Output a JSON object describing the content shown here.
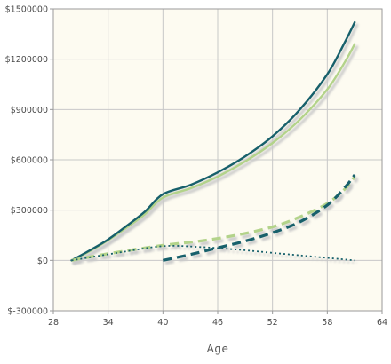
{
  "chart_data": {
    "type": "line",
    "title": "",
    "xlabel": "Age",
    "ylabel": "",
    "xlim": [
      28,
      64
    ],
    "ylim": [
      -300000,
      1500000
    ],
    "x_ticks": [
      28,
      34,
      40,
      46,
      52,
      58,
      64
    ],
    "y_ticks": [
      -300000,
      0,
      300000,
      600000,
      900000,
      1200000,
      1500000
    ],
    "x_tick_labels": [
      "28",
      "34",
      "40",
      "46",
      "52",
      "58",
      "64"
    ],
    "y_tick_labels": [
      "$-300000",
      "$0",
      "$300000",
      "$600000",
      "$900000",
      "$1200000",
      "$1500000"
    ],
    "grid": true,
    "colors": {
      "plot_background": "#fdfbf1",
      "grid": "#c8c8c8",
      "dark_teal": "#17606b",
      "light_green": "#b3d38a",
      "shadow": "#c9c9c9"
    },
    "series": [
      {
        "color": "#b3d38a",
        "style": "solid",
        "points": [
          [
            30,
            0
          ],
          [
            32,
            55000
          ],
          [
            34,
            120000
          ],
          [
            36,
            195000
          ],
          [
            38,
            275000
          ],
          [
            40,
            375000
          ],
          [
            43,
            430000
          ],
          [
            46,
            500000
          ],
          [
            49,
            590000
          ],
          [
            52,
            700000
          ],
          [
            55,
            840000
          ],
          [
            58,
            1020000
          ],
          [
            60,
            1190000
          ],
          [
            61,
            1290000
          ]
        ]
      },
      {
        "color": "#17606b",
        "style": "solid",
        "points": [
          [
            30,
            0
          ],
          [
            32,
            60000
          ],
          [
            34,
            125000
          ],
          [
            36,
            205000
          ],
          [
            38,
            290000
          ],
          [
            40,
            395000
          ],
          [
            43,
            450000
          ],
          [
            46,
            525000
          ],
          [
            49,
            620000
          ],
          [
            52,
            740000
          ],
          [
            55,
            900000
          ],
          [
            58,
            1110000
          ],
          [
            60,
            1310000
          ],
          [
            61,
            1420000
          ]
        ]
      },
      {
        "color": "#b3d38a",
        "style": "dashed",
        "points": [
          [
            30,
            0
          ],
          [
            34,
            40000
          ],
          [
            40,
            90000
          ],
          [
            44,
            115000
          ],
          [
            48,
            150000
          ],
          [
            52,
            200000
          ],
          [
            55,
            260000
          ],
          [
            58,
            340000
          ],
          [
            60,
            430000
          ],
          [
            61,
            500000
          ]
        ]
      },
      {
        "color": "#17606b",
        "style": "dashed",
        "points": [
          [
            40,
            0
          ],
          [
            43,
            35000
          ],
          [
            46,
            75000
          ],
          [
            49,
            115000
          ],
          [
            52,
            165000
          ],
          [
            55,
            230000
          ],
          [
            58,
            330000
          ],
          [
            60,
            440000
          ],
          [
            61,
            510000
          ]
        ]
      },
      {
        "color": "#17606b",
        "style": "dotted",
        "points": [
          [
            30,
            0
          ],
          [
            35,
            45000
          ],
          [
            40,
            85000
          ],
          [
            44,
            80000
          ],
          [
            48,
            65000
          ],
          [
            52,
            45000
          ],
          [
            56,
            25000
          ],
          [
            61,
            0
          ]
        ]
      }
    ]
  }
}
